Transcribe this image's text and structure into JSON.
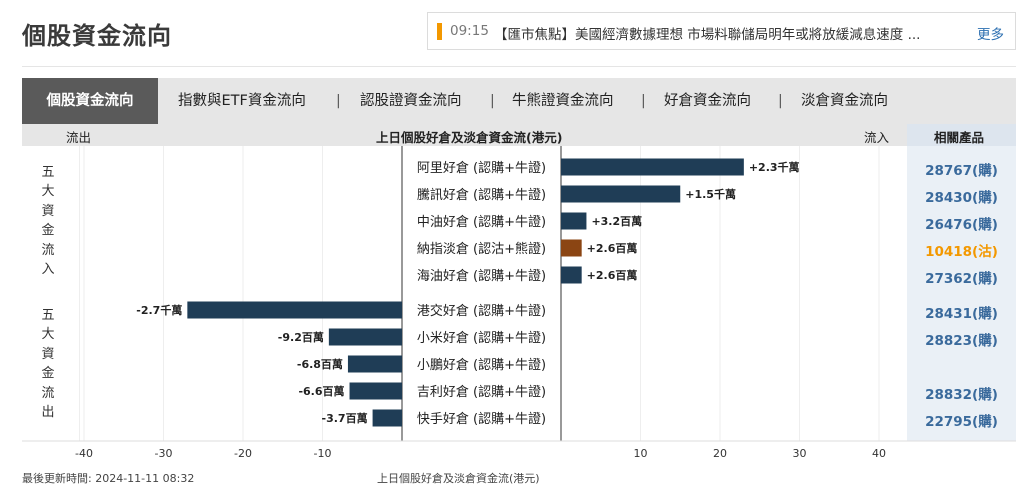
{
  "page": {
    "title": "個股資金流向"
  },
  "news": {
    "time": "09:15",
    "text": "【匯市焦點】美國經濟數據理想 市場料聯儲局明年或將放緩減息速度 ...",
    "more_label": "更多"
  },
  "tabs": [
    {
      "label": "個股資金流向",
      "active": true
    },
    {
      "label": "指數與ETF資金流向",
      "active": false
    },
    {
      "label": "認股證資金流向",
      "active": false
    },
    {
      "label": "牛熊證資金流向",
      "active": false
    },
    {
      "label": "好倉資金流向",
      "active": false
    },
    {
      "label": "淡倉資金流向",
      "active": false
    }
  ],
  "tab_separator": "|",
  "header": {
    "outflow": "流出",
    "center": "上日個股好倉及淡倉資金流(港元)",
    "inflow": "流入",
    "products": "相關產品"
  },
  "groups": {
    "inflow_label": "五大資金流入",
    "outflow_label": "五大資金流出"
  },
  "colors": {
    "bar_default": "#1f3d56",
    "bar_put": "#8b4513",
    "product_orange": "#f39800",
    "product_blue": "#3a6a9c"
  },
  "chart_data": {
    "type": "bar",
    "orientation": "horizontal",
    "title": "上日個股好倉及淡倉資金流(港元)",
    "xlabel": "上日個股好倉及淡倉資金流(港元)",
    "unit": "百萬",
    "xlim": [
      -45,
      45
    ],
    "xticks": [
      -40,
      -30,
      -20,
      -10,
      10,
      20,
      30,
      40
    ],
    "grid": true,
    "categories": [
      "阿里好倉 (認購+牛證)",
      "騰訊好倉 (認購+牛證)",
      "中油好倉 (認購+牛證)",
      "納指淡倉 (認沽+熊證)",
      "海油好倉 (認購+牛證)",
      "港交好倉 (認購+牛證)",
      "小米好倉 (認購+牛證)",
      "小鵬好倉 (認購+牛證)",
      "吉利好倉 (認購+牛證)",
      "快手好倉 (認購+牛證)"
    ],
    "values": [
      23,
      15,
      3.2,
      2.6,
      2.6,
      -27,
      -9.2,
      -6.8,
      -6.6,
      -3.7
    ],
    "value_labels": [
      "+2.3千萬",
      "+1.5千萬",
      "+3.2百萬",
      "+2.6百萬",
      "+2.6百萬",
      "-2.7千萬",
      "-9.2百萬",
      "-6.8百萬",
      "-6.6百萬",
      "-3.7百萬"
    ],
    "bar_types": [
      "bull",
      "bull",
      "bull",
      "bear",
      "bull",
      "bull",
      "bull",
      "bull",
      "bull",
      "bull"
    ],
    "products": [
      "28767(購)",
      "28430(購)",
      "26476(購)",
      "10418(沽)",
      "27362(購)",
      "28431(購)",
      "28823(購)",
      "",
      "28832(購)",
      "22795(購)"
    ]
  },
  "footer": {
    "updated_label": "最後更新時間:",
    "updated_time": "2024-11-11 08:32",
    "axis_caption": "上日個股好倉及淡倉資金流(港元)"
  }
}
